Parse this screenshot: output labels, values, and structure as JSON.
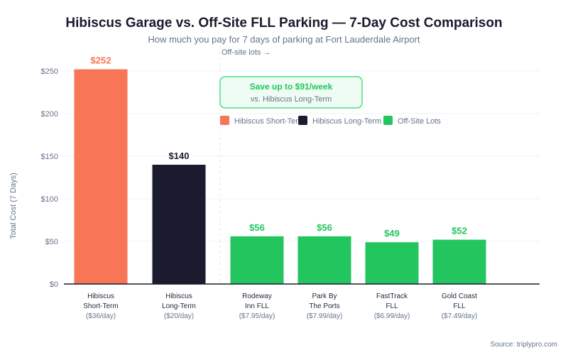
{
  "chart_data": {
    "type": "bar",
    "title": "Hibiscus Garage vs. Off-Site FLL Parking — 7-Day Cost Comparison",
    "subtitle": "How much you pay for 7 days of parking at Fort Lauderdale Airport",
    "ylabel": "Total Cost (7 Days)",
    "xlabel": "",
    "ylim": [
      0,
      250
    ],
    "yticks": [
      0,
      50,
      100,
      150,
      200,
      250
    ],
    "ytick_labels": [
      "$0",
      "$50",
      "$100",
      "$150",
      "$200",
      "$250"
    ],
    "grid": true,
    "categories": [
      {
        "line1": "Hibiscus",
        "line2": "Short-Term",
        "rate": "($36/day)"
      },
      {
        "line1": "Hibiscus",
        "line2": "Long-Term",
        "rate": "($20/day)"
      },
      {
        "line1": "Rodeway",
        "line2": "Inn FLL",
        "rate": "($7.95/day)"
      },
      {
        "line1": "Park By",
        "line2": "The Ports",
        "rate": "($7.99/day)"
      },
      {
        "line1": "FastTrack",
        "line2": "FLL",
        "rate": "($6.99/day)"
      },
      {
        "line1": "Gold Coast",
        "line2": "FLL",
        "rate": "($7.49/day)"
      }
    ],
    "values": [
      252,
      140,
      56,
      56,
      49,
      52
    ],
    "value_labels": [
      "$252",
      "$140",
      "$56",
      "$56",
      "$49",
      "$52"
    ],
    "groups": [
      0,
      1,
      2,
      2,
      2,
      2
    ],
    "legend": [
      {
        "label": "Hibiscus Short-Term",
        "color": "#f87555"
      },
      {
        "label": "Hibiscus Long-Term",
        "color": "#1a1b2e"
      },
      {
        "label": "Off-Site Lots",
        "color": "#22c55e"
      }
    ],
    "legend_placement": "top-center",
    "divider_label": "Off-site lots →",
    "annotation": {
      "title": "Save up to $91/week",
      "subtitle": "vs. Hibiscus Long-Term"
    },
    "source": "Source: triplypro.com"
  }
}
